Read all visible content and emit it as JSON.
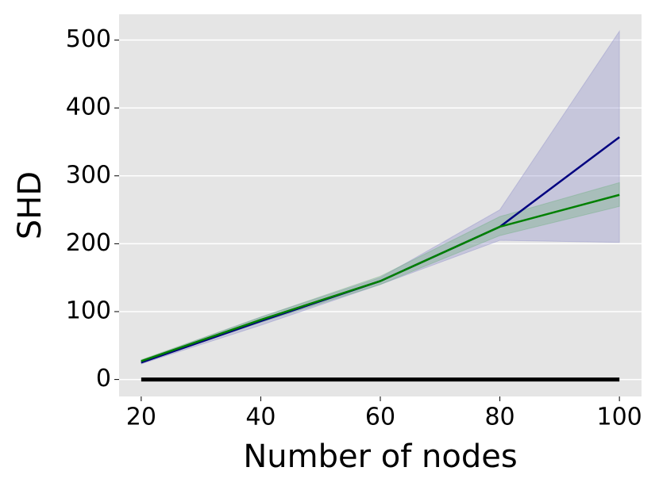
{
  "chart_data": {
    "type": "line",
    "x_label": "Number of nodes",
    "y_label": "SHD",
    "x": [
      20,
      40,
      60,
      80,
      100
    ],
    "xlim": [
      16.3,
      103.7
    ],
    "ylim": [
      -25,
      538
    ],
    "xticks": [
      20,
      40,
      60,
      80,
      100
    ],
    "yticks": [
      0,
      100,
      200,
      300,
      400,
      500
    ],
    "grid": true,
    "series": [
      {
        "color": "#000080",
        "band_color": "#8c8cc8",
        "values": [
          25,
          86,
          145,
          225,
          357
        ],
        "lower": [
          23,
          80,
          140,
          205,
          202
        ],
        "upper": [
          28,
          92,
          150,
          250,
          513
        ]
      },
      {
        "color": "#008000",
        "band_color": "#6fae7f",
        "values": [
          27,
          88,
          145,
          225,
          272
        ],
        "lower": [
          25,
          84,
          140,
          212,
          255
        ],
        "upper": [
          29,
          92,
          152,
          240,
          290
        ]
      },
      {
        "color": "#000000",
        "values": [
          0,
          0,
          0,
          0,
          0
        ]
      }
    ]
  }
}
